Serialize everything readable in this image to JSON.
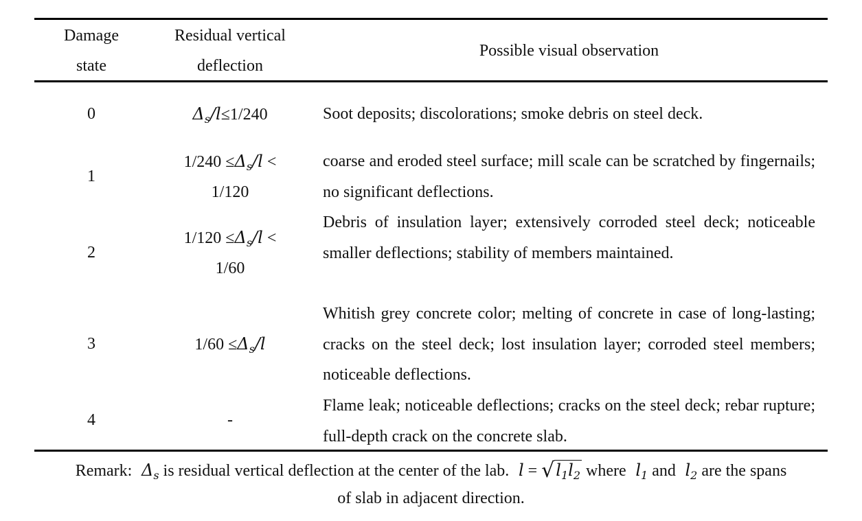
{
  "header": {
    "col_damage_state": [
      "Damage",
      "state"
    ],
    "col_deflection": [
      "Residual vertical",
      "deflection"
    ],
    "col_observation": "Possible visual observation"
  },
  "rows": [
    {
      "state": "0",
      "deflection_lines": [
        "Δs/l≤1/240"
      ],
      "observation": "Soot deposits; discolorations; smoke debris on steel deck."
    },
    {
      "state": "1",
      "deflection_lines": [
        "1/240 ≤Δs/l <",
        "1/120"
      ],
      "observation": "coarse and eroded steel surface; mill scale can be scratched by fingernails; no significant deflections."
    },
    {
      "state": "2",
      "deflection_lines": [
        "1/120 ≤Δs/l <",
        "1/60"
      ],
      "observation": "Debris of insulation layer; extensively corroded steel deck; noticeable smaller deflections; stability of members maintained."
    },
    {
      "state": "3",
      "deflection_lines": [
        "1/60 ≤Δs/l"
      ],
      "observation": "Whitish grey concrete color; melting of concrete in case of long-lasting; cracks on the steel deck; lost insulation layer; corroded steel members; noticeable deflections."
    },
    {
      "state": "4",
      "deflection_lines": [
        "-"
      ],
      "observation": "Flame leak; noticeable deflections; cracks on the steel deck; rebar rupture; full-depth crack on the concrete slab."
    }
  ],
  "remark": {
    "label": "Remark:",
    "text_1": "is residual vertical deflection at the center of the lab.",
    "text_2": "where",
    "text_3": "and",
    "text_4": "are the spans",
    "line_2": "of slab in adjacent direction."
  }
}
